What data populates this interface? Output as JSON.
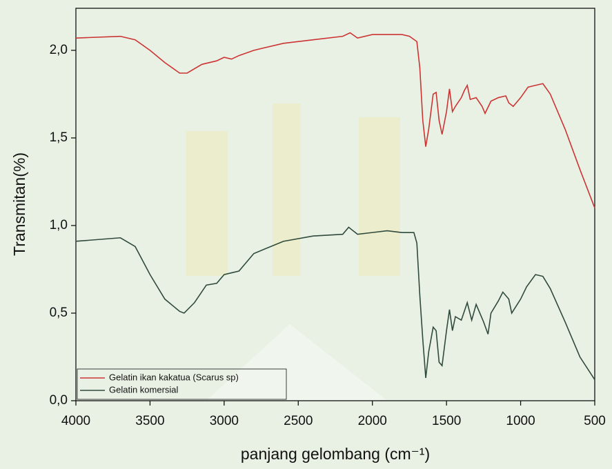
{
  "chart_data": {
    "type": "line",
    "xlabel": "panjang gelombang (cm⁻¹)",
    "ylabel": "Transmitan(%)",
    "xlim": [
      4000,
      500
    ],
    "ylim": [
      0,
      2.24
    ],
    "xticks": [
      4000,
      3500,
      3000,
      2500,
      2000,
      1500,
      1000,
      500
    ],
    "yticks": [
      {
        "value": 0,
        "label": "0,0"
      },
      {
        "value": 0.5,
        "label": "0,5"
      },
      {
        "value": 1.0,
        "label": "1,0"
      },
      {
        "value": 1.5,
        "label": "1,5"
      },
      {
        "value": 2.0,
        "label": "2,0"
      }
    ],
    "legend": "lower left",
    "series": [
      {
        "name": "Gelatin ikan kakatua (Scarus sp)",
        "color": "#cc3333",
        "x": [
          4000,
          3700,
          3600,
          3500,
          3400,
          3300,
          3250,
          3150,
          3050,
          3000,
          2950,
          2900,
          2800,
          2600,
          2400,
          2200,
          2150,
          2100,
          2000,
          1900,
          1800,
          1750,
          1700,
          1680,
          1660,
          1640,
          1620,
          1590,
          1570,
          1550,
          1530,
          1500,
          1480,
          1460,
          1440,
          1400,
          1380,
          1360,
          1340,
          1300,
          1260,
          1240,
          1200,
          1150,
          1100,
          1080,
          1050,
          1000,
          950,
          900,
          850,
          800,
          700,
          600,
          500
        ],
        "values": [
          2.07,
          2.08,
          2.06,
          2.0,
          1.93,
          1.87,
          1.87,
          1.92,
          1.94,
          1.96,
          1.95,
          1.97,
          2.0,
          2.04,
          2.06,
          2.08,
          2.1,
          2.07,
          2.09,
          2.09,
          2.09,
          2.08,
          2.05,
          1.9,
          1.6,
          1.45,
          1.55,
          1.75,
          1.76,
          1.6,
          1.52,
          1.65,
          1.78,
          1.65,
          1.68,
          1.73,
          1.77,
          1.8,
          1.72,
          1.73,
          1.68,
          1.64,
          1.71,
          1.73,
          1.74,
          1.7,
          1.68,
          1.73,
          1.79,
          1.8,
          1.81,
          1.75,
          1.55,
          1.32,
          1.1
        ]
      },
      {
        "name": "Gelatin komersial",
        "color": "#2f4a3c",
        "x": [
          4000,
          3700,
          3600,
          3500,
          3400,
          3300,
          3270,
          3200,
          3120,
          3050,
          3000,
          2950,
          2900,
          2800,
          2600,
          2400,
          2200,
          2160,
          2100,
          2000,
          1900,
          1800,
          1720,
          1700,
          1680,
          1660,
          1640,
          1620,
          1590,
          1570,
          1550,
          1530,
          1500,
          1480,
          1460,
          1440,
          1400,
          1360,
          1330,
          1300,
          1250,
          1220,
          1200,
          1150,
          1120,
          1080,
          1060,
          1000,
          960,
          900,
          850,
          800,
          700,
          600,
          500
        ],
        "values": [
          0.91,
          0.93,
          0.88,
          0.72,
          0.58,
          0.51,
          0.5,
          0.56,
          0.66,
          0.67,
          0.72,
          0.73,
          0.74,
          0.84,
          0.91,
          0.94,
          0.95,
          0.99,
          0.95,
          0.96,
          0.97,
          0.96,
          0.96,
          0.9,
          0.6,
          0.35,
          0.13,
          0.28,
          0.42,
          0.4,
          0.22,
          0.2,
          0.4,
          0.52,
          0.4,
          0.48,
          0.46,
          0.56,
          0.46,
          0.55,
          0.45,
          0.38,
          0.5,
          0.57,
          0.62,
          0.58,
          0.5,
          0.58,
          0.65,
          0.72,
          0.71,
          0.64,
          0.45,
          0.25,
          0.12
        ]
      }
    ]
  }
}
